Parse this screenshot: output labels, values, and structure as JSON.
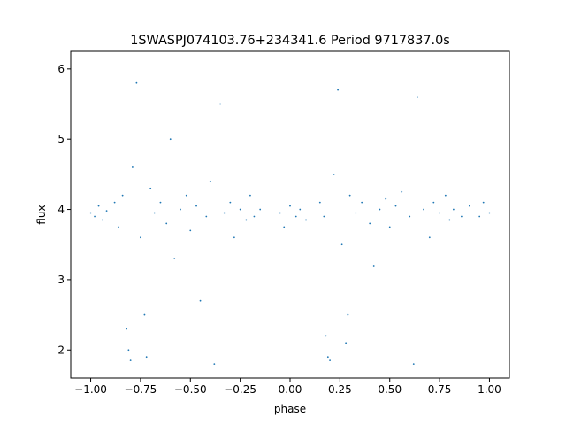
{
  "chart_data": {
    "type": "scatter",
    "title": "1SWASPJ074103.76+234341.6 Period 9717837.0s",
    "xlabel": "phase",
    "ylabel": "flux",
    "xlim": [
      -1.1,
      1.1
    ],
    "ylim": [
      1.6,
      6.25
    ],
    "x_ticks": [
      {
        "value": -1.0,
        "label": "−1.00"
      },
      {
        "value": -0.75,
        "label": "−0.75"
      },
      {
        "value": -0.5,
        "label": "−0.50"
      },
      {
        "value": -0.25,
        "label": "−0.25"
      },
      {
        "value": 0.0,
        "label": "0.00"
      },
      {
        "value": 0.25,
        "label": "0.25"
      },
      {
        "value": 0.5,
        "label": "0.50"
      },
      {
        "value": 0.75,
        "label": "0.75"
      },
      {
        "value": 1.0,
        "label": "1.00"
      }
    ],
    "y_ticks": [
      {
        "value": 2,
        "label": "2"
      },
      {
        "value": 3,
        "label": "3"
      },
      {
        "value": 4,
        "label": "4"
      },
      {
        "value": 5,
        "label": "5"
      },
      {
        "value": 6,
        "label": "6"
      }
    ],
    "grid": false,
    "marker_color": "#1f77b4",
    "series": [
      {
        "x_range": [
          -1.0,
          1.0
        ],
        "y_center": 3.93,
        "points": [
          [
            -1.0,
            3.95
          ],
          [
            -0.98,
            3.9
          ],
          [
            -0.96,
            4.05
          ],
          [
            -0.94,
            3.85
          ],
          [
            -0.92,
            3.98
          ],
          [
            -0.88,
            4.1
          ],
          [
            -0.86,
            3.75
          ],
          [
            -0.84,
            4.2
          ],
          [
            -0.82,
            2.3
          ],
          [
            -0.81,
            2.0
          ],
          [
            -0.8,
            1.85
          ],
          [
            -0.79,
            4.6
          ],
          [
            -0.77,
            5.8
          ],
          [
            -0.75,
            3.6
          ],
          [
            -0.73,
            2.5
          ],
          [
            -0.72,
            1.9
          ],
          [
            -0.7,
            4.3
          ],
          [
            -0.68,
            3.95
          ],
          [
            -0.65,
            4.1
          ],
          [
            -0.62,
            3.8
          ],
          [
            -0.6,
            5.0
          ],
          [
            -0.58,
            3.3
          ],
          [
            -0.55,
            4.0
          ],
          [
            -0.52,
            4.2
          ],
          [
            -0.5,
            3.7
          ],
          [
            -0.47,
            4.05
          ],
          [
            -0.45,
            2.7
          ],
          [
            -0.42,
            3.9
          ],
          [
            -0.4,
            4.4
          ],
          [
            -0.38,
            1.8
          ],
          [
            -0.35,
            5.5
          ],
          [
            -0.33,
            3.95
          ],
          [
            -0.3,
            4.1
          ],
          [
            -0.28,
            3.6
          ],
          [
            -0.25,
            4.0
          ],
          [
            -0.22,
            3.85
          ],
          [
            -0.2,
            4.2
          ],
          [
            -0.18,
            3.9
          ],
          [
            -0.15,
            4.0
          ],
          [
            -0.05,
            3.95
          ],
          [
            -0.03,
            3.75
          ],
          [
            0.0,
            4.05
          ],
          [
            0.03,
            3.9
          ],
          [
            0.05,
            4.0
          ],
          [
            0.08,
            3.85
          ],
          [
            0.15,
            4.1
          ],
          [
            0.17,
            3.9
          ],
          [
            0.18,
            2.2
          ],
          [
            0.19,
            1.9
          ],
          [
            0.2,
            1.85
          ],
          [
            0.22,
            4.5
          ],
          [
            0.24,
            5.7
          ],
          [
            0.26,
            3.5
          ],
          [
            0.28,
            2.1
          ],
          [
            0.29,
            2.5
          ],
          [
            0.3,
            4.2
          ],
          [
            0.33,
            3.95
          ],
          [
            0.36,
            4.1
          ],
          [
            0.4,
            3.8
          ],
          [
            0.42,
            3.2
          ],
          [
            0.45,
            4.0
          ],
          [
            0.48,
            4.15
          ],
          [
            0.5,
            3.75
          ],
          [
            0.53,
            4.05
          ],
          [
            0.56,
            4.25
          ],
          [
            0.6,
            3.9
          ],
          [
            0.62,
            1.8
          ],
          [
            0.64,
            5.6
          ],
          [
            0.67,
            4.0
          ],
          [
            0.7,
            3.6
          ],
          [
            0.72,
            4.1
          ],
          [
            0.75,
            3.95
          ],
          [
            0.78,
            4.2
          ],
          [
            0.8,
            3.85
          ],
          [
            0.82,
            4.0
          ],
          [
            0.86,
            3.9
          ],
          [
            0.9,
            4.05
          ],
          [
            0.95,
            3.9
          ],
          [
            0.97,
            4.1
          ],
          [
            1.0,
            3.95
          ]
        ]
      }
    ]
  }
}
